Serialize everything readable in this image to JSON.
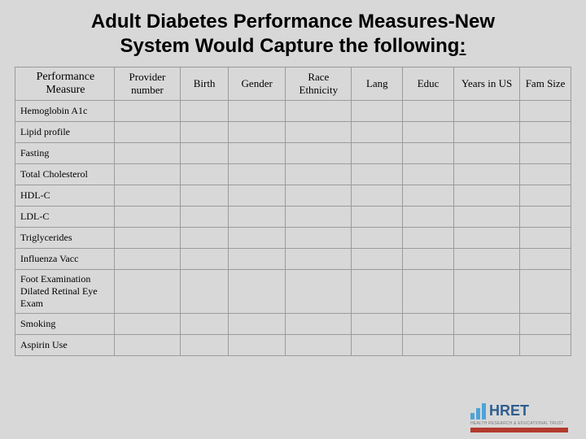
{
  "title_line1": "Adult Diabetes Performance Measures-New",
  "title_line2_a": "System Would Capture the following",
  "title_line2_b": ":",
  "table": {
    "columns": [
      "Performance Measure",
      "Provider number",
      "Birth",
      "Gender",
      "Race Ethnicity",
      "Lang",
      "Educ",
      "Years in US",
      "Fam Size"
    ],
    "col_widths_pct": [
      16.5,
      11,
      8,
      9.5,
      11,
      8.5,
      8.5,
      11,
      8.5
    ],
    "rows": [
      "Hemoglobin A1c",
      "Lipid profile",
      "Fasting",
      "Total Cholesterol",
      "HDL-C",
      "LDL-C",
      "Triglycerides",
      "Influenza Vacc",
      "Foot Examination Dilated Retinal Eye Exam",
      "Smoking",
      "Aspirin Use"
    ],
    "border_color": "#9b9b9b",
    "background_color": "#d8d8d8",
    "header_fontsize": 13,
    "row_fontsize": 12
  },
  "logo": {
    "text": "HRET",
    "bar_color": "#4ea3d8",
    "text_color": "#2e5e8f",
    "strip_color": "#b33a2e",
    "tagline": "HEALTH RESEARCH & EDUCATIONAL TRUST"
  },
  "page_background": "#d8d8d8"
}
